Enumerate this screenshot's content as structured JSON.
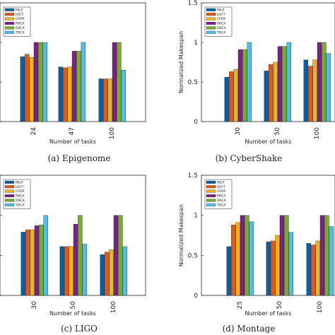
{
  "legend": [
    "MILP",
    "HEFT",
    "CPOP",
    "RBCA",
    "DBCA",
    "TDCA"
  ],
  "colors": [
    "#0a5fa0",
    "#dd5a1c",
    "#eeb21e",
    "#7a2187",
    "#77ac30",
    "#4fbfe8"
  ],
  "chart_data": [
    {
      "type": "bar",
      "caption": "(a) Epigenome",
      "xlabel": "Number of tasks",
      "ylabel": "",
      "categories": [
        "24",
        "47",
        "100"
      ],
      "ylim": [
        0,
        1.5
      ],
      "yticks": [],
      "series": [
        {
          "name": "MILP",
          "values": [
            0.82,
            0.69,
            0.54
          ]
        },
        {
          "name": "HEFT",
          "values": [
            0.85,
            0.68,
            0.54
          ]
        },
        {
          "name": "CPOP",
          "values": [
            0.81,
            0.69,
            0.54
          ]
        },
        {
          "name": "RBCA",
          "values": [
            1.0,
            0.89,
            1.0
          ]
        },
        {
          "name": "DBCA",
          "values": [
            1.0,
            0.89,
            1.0
          ]
        },
        {
          "name": "TDCA",
          "values": [
            1.0,
            1.0,
            0.65
          ]
        }
      ]
    },
    {
      "type": "bar",
      "caption": "(b) CyberShake",
      "xlabel": "Number of tasks",
      "ylabel": "Normalized Makespan",
      "categories": [
        "30",
        "50",
        "100"
      ],
      "ylim": [
        0,
        1.5
      ],
      "yticks": [
        "0",
        "0.5",
        "1",
        "1.5"
      ],
      "series": [
        {
          "name": "MILP",
          "values": [
            0.56,
            0.64,
            0.78
          ]
        },
        {
          "name": "HEFT",
          "values": [
            0.63,
            0.72,
            0.7
          ]
        },
        {
          "name": "CPOP",
          "values": [
            0.66,
            0.75,
            0.78
          ]
        },
        {
          "name": "RBCA",
          "values": [
            0.91,
            0.95,
            1.0
          ]
        },
        {
          "name": "DBCA",
          "values": [
            0.91,
            0.95,
            1.0
          ]
        },
        {
          "name": "TDCA",
          "values": [
            1.0,
            1.0,
            0.86
          ]
        }
      ]
    },
    {
      "type": "bar",
      "caption": "(c) LIGO",
      "xlabel": "Number of tasks",
      "ylabel": "",
      "categories": [
        "30",
        "50",
        "100"
      ],
      "ylim": [
        0,
        1.5
      ],
      "yticks": [],
      "series": [
        {
          "name": "MILP",
          "values": [
            0.79,
            0.61,
            0.51
          ]
        },
        {
          "name": "HEFT",
          "values": [
            0.82,
            0.61,
            0.54
          ]
        },
        {
          "name": "CPOP",
          "values": [
            0.82,
            0.61,
            0.57
          ]
        },
        {
          "name": "RBCA",
          "values": [
            0.87,
            0.89,
            1.0
          ]
        },
        {
          "name": "DBCA",
          "values": [
            0.88,
            1.0,
            1.0
          ]
        },
        {
          "name": "TDCA",
          "values": [
            1.0,
            0.64,
            0.61
          ]
        }
      ]
    },
    {
      "type": "bar",
      "caption": "(d) Montage",
      "xlabel": "Number of tasks",
      "ylabel": "Normalized Makespan",
      "categories": [
        "25",
        "50",
        "100"
      ],
      "ylim": [
        0,
        1.5
      ],
      "yticks": [
        "0",
        "0.5",
        "1",
        "1.5"
      ],
      "series": [
        {
          "name": "MILP",
          "values": [
            0.61,
            0.67,
            0.65
          ]
        },
        {
          "name": "HEFT",
          "values": [
            0.88,
            0.68,
            0.63
          ]
        },
        {
          "name": "CPOP",
          "values": [
            0.91,
            0.75,
            0.68
          ]
        },
        {
          "name": "RBCA",
          "values": [
            1.0,
            1.0,
            1.0
          ]
        },
        {
          "name": "DBCA",
          "values": [
            1.0,
            1.0,
            1.0
          ]
        },
        {
          "name": "TDCA",
          "values": [
            0.92,
            0.79,
            0.86
          ]
        }
      ]
    }
  ]
}
